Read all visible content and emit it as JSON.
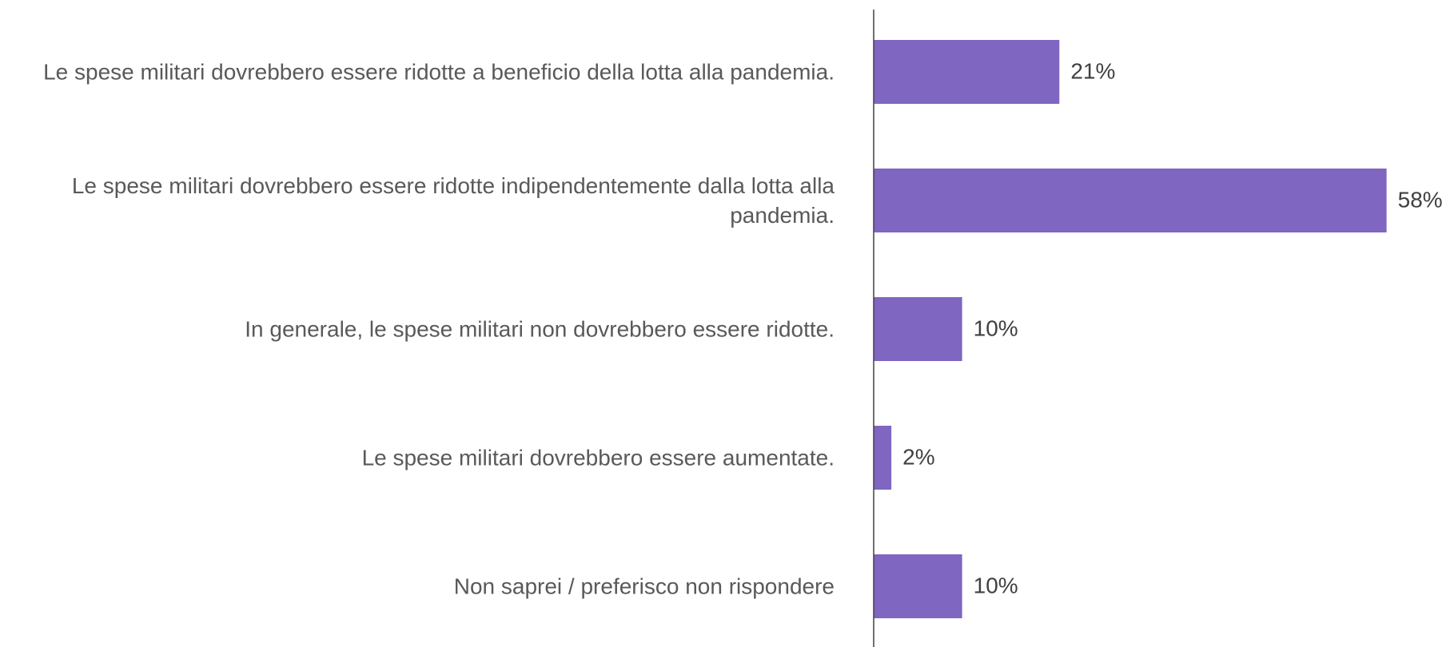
{
  "chart_data": {
    "type": "hbar",
    "categories": [
      "Le spese militari dovrebbero essere ridotte a beneficio della lotta alla pandemia.",
      "Le spese militari dovrebbero essere ridotte indipendentemente dalla lotta alla pandemia.",
      "In generale, le spese militari non dovrebbero essere ridotte.",
      "Le spese militari dovrebbero essere aumentate.",
      "Non saprei / preferisco non rispondere"
    ],
    "values": [
      21,
      58,
      10,
      2,
      10
    ],
    "value_labels": [
      "21%",
      "58%",
      "10%",
      "2%",
      "10%"
    ],
    "color": "#7e66c1",
    "xlim": [
      0,
      64
    ]
  }
}
